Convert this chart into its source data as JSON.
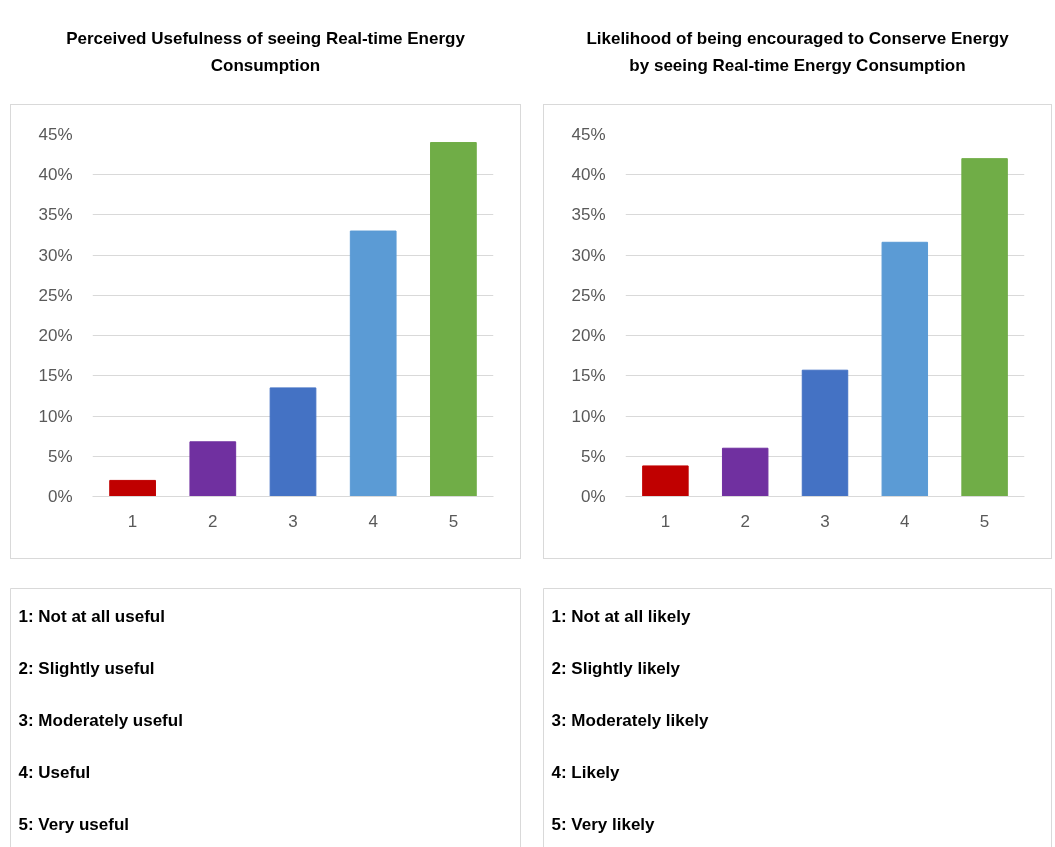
{
  "chart_data": [
    {
      "type": "bar",
      "title": "Perceived Usefulness of seeing Real-time Energy Consumption",
      "categories": [
        "1",
        "2",
        "3",
        "4",
        "5"
      ],
      "values": [
        2,
        6.8,
        13.5,
        33,
        44
      ],
      "colors": [
        "#c00000",
        "#7030a0",
        "#4472c4",
        "#5b9bd5",
        "#70ad47"
      ],
      "ylim": [
        0,
        45
      ],
      "yticks": [
        {
          "value": 0,
          "label": "0%"
        },
        {
          "value": 5,
          "label": "5%"
        },
        {
          "value": 10,
          "label": "10%"
        },
        {
          "value": 15,
          "label": "15%"
        },
        {
          "value": 20,
          "label": "20%"
        },
        {
          "value": 25,
          "label": "25%"
        },
        {
          "value": 30,
          "label": "30%"
        },
        {
          "value": 35,
          "label": "35%"
        },
        {
          "value": 40,
          "label": "40%"
        },
        {
          "value": 45,
          "label": "45%"
        }
      ],
      "grid": "y"
    },
    {
      "type": "bar",
      "title": "Likelihood of being encouraged to Conserve Energy by seeing Real-time Energy Consumption",
      "categories": [
        "1",
        "2",
        "3",
        "4",
        "5"
      ],
      "values": [
        3.8,
        6,
        15.7,
        31.6,
        42
      ],
      "colors": [
        "#c00000",
        "#7030a0",
        "#4472c4",
        "#5b9bd5",
        "#70ad47"
      ],
      "ylim": [
        0,
        45
      ],
      "yticks": [
        {
          "value": 0,
          "label": "0%"
        },
        {
          "value": 5,
          "label": "5%"
        },
        {
          "value": 10,
          "label": "10%"
        },
        {
          "value": 15,
          "label": "15%"
        },
        {
          "value": 20,
          "label": "20%"
        },
        {
          "value": 25,
          "label": "25%"
        },
        {
          "value": 30,
          "label": "30%"
        },
        {
          "value": 35,
          "label": "35%"
        },
        {
          "value": 40,
          "label": "40%"
        },
        {
          "value": 45,
          "label": "45%"
        }
      ],
      "grid": "y"
    },
    {
      "type": "other",
      "annotations": [
        "1: Not at all useful",
        "2: Slightly useful",
        "3: Moderately useful",
        "4: Useful",
        "5: Very useful"
      ]
    },
    {
      "type": "other",
      "annotations": [
        "1: Not at all likely",
        "2: Slightly likely",
        "3: Moderately likely",
        "4: Likely",
        "5: Very likely"
      ]
    }
  ]
}
